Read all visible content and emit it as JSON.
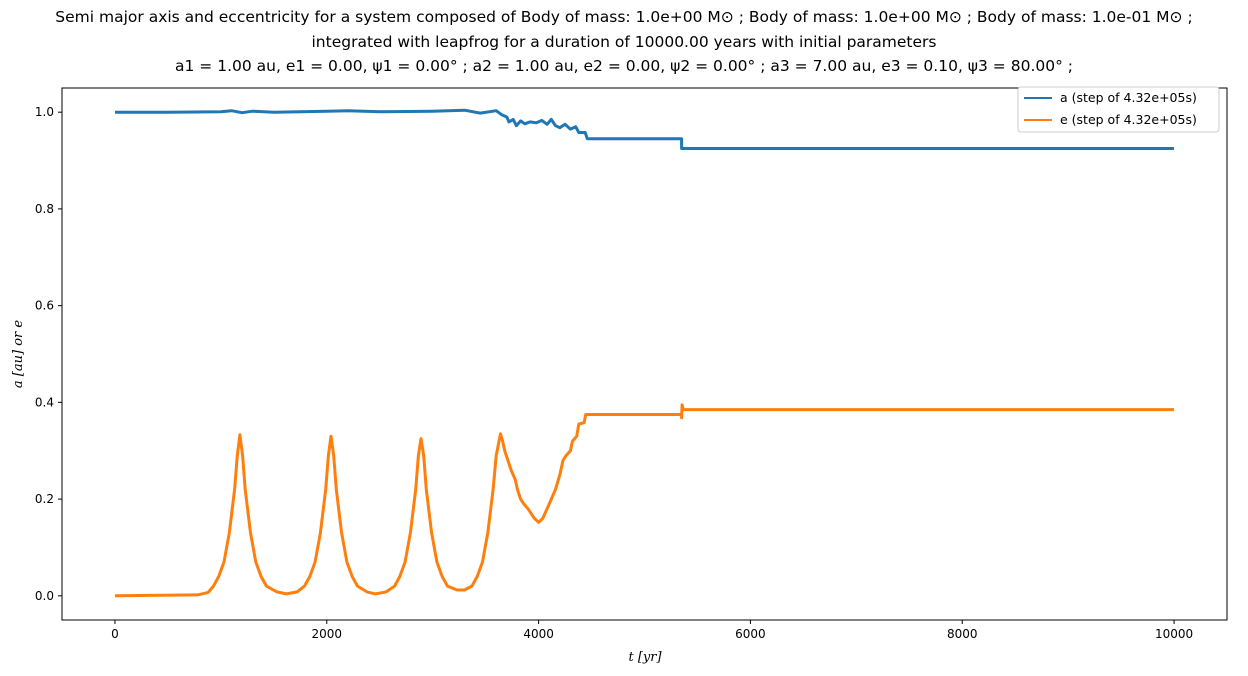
{
  "chart_data": {
    "type": "line",
    "title_lines": [
      "Semi major axis and eccentricity for a system composed of Body of mass: 1.0e+00 M⊙ ; Body of mass: 1.0e+00 M⊙ ; Body of mass: 1.0e-01 M⊙ ;",
      "integrated with leapfrog for a duration of 10000.00 years with initial parameters",
      "a1 = 1.00 au, e1 = 0.00, ψ1 = 0.00° ; a2 = 1.00 au, e2 = 0.00, ψ2 = 0.00° ; a3 = 7.00 au, e3 = 0.10, ψ3 = 80.00° ;"
    ],
    "xlabel": "t [yr]",
    "ylabel": "a [au] or e",
    "xlim": [
      -500,
      10500
    ],
    "ylim": [
      -0.05,
      1.05
    ],
    "xticks": [
      0,
      2000,
      4000,
      6000,
      8000,
      10000
    ],
    "xtick_labels": [
      "0",
      "2000",
      "4000",
      "6000",
      "8000",
      "10000"
    ],
    "yticks": [
      0.0,
      0.2,
      0.4,
      0.6,
      0.8,
      1.0
    ],
    "ytick_labels": [
      "0.0",
      "0.2",
      "0.4",
      "0.6",
      "0.8",
      "1.0"
    ],
    "grid": false,
    "legend_position": "top-right",
    "series": [
      {
        "name": "a (step of 4.32e+05s)",
        "color": "#1f77b4",
        "points": [
          [
            0,
            1.0
          ],
          [
            500,
            1.0
          ],
          [
            1000,
            1.001
          ],
          [
            1100,
            1.003
          ],
          [
            1200,
            0.999
          ],
          [
            1300,
            1.002
          ],
          [
            1500,
            1.0
          ],
          [
            2000,
            1.002
          ],
          [
            2200,
            1.003
          ],
          [
            2500,
            1.001
          ],
          [
            3000,
            1.002
          ],
          [
            3300,
            1.004
          ],
          [
            3450,
            0.998
          ],
          [
            3600,
            1.003
          ],
          [
            3650,
            0.995
          ],
          [
            3700,
            0.99
          ],
          [
            3720,
            0.98
          ],
          [
            3760,
            0.985
          ],
          [
            3790,
            0.972
          ],
          [
            3830,
            0.982
          ],
          [
            3870,
            0.976
          ],
          [
            3920,
            0.98
          ],
          [
            3980,
            0.978
          ],
          [
            4030,
            0.983
          ],
          [
            4080,
            0.975
          ],
          [
            4120,
            0.985
          ],
          [
            4160,
            0.972
          ],
          [
            4200,
            0.968
          ],
          [
            4250,
            0.975
          ],
          [
            4300,
            0.965
          ],
          [
            4350,
            0.97
          ],
          [
            4380,
            0.958
          ],
          [
            4440,
            0.958
          ],
          [
            4460,
            0.945
          ],
          [
            5350,
            0.945
          ],
          [
            5350,
            0.925
          ],
          [
            10000,
            0.925
          ]
        ]
      },
      {
        "name": "e (step of 4.32e+05s)",
        "color": "#ff7f0e",
        "points": [
          [
            0,
            0.0
          ],
          [
            780,
            0.002
          ],
          [
            880,
            0.007
          ],
          [
            930,
            0.02
          ],
          [
            980,
            0.04
          ],
          [
            1030,
            0.07
          ],
          [
            1080,
            0.13
          ],
          [
            1130,
            0.22
          ],
          [
            1155,
            0.29
          ],
          [
            1180,
            0.333
          ],
          [
            1205,
            0.29
          ],
          [
            1230,
            0.22
          ],
          [
            1280,
            0.13
          ],
          [
            1330,
            0.07
          ],
          [
            1380,
            0.04
          ],
          [
            1430,
            0.02
          ],
          [
            1530,
            0.008
          ],
          [
            1620,
            0.004
          ],
          [
            1720,
            0.008
          ],
          [
            1790,
            0.02
          ],
          [
            1840,
            0.04
          ],
          [
            1890,
            0.07
          ],
          [
            1940,
            0.13
          ],
          [
            1990,
            0.22
          ],
          [
            2015,
            0.29
          ],
          [
            2040,
            0.33
          ],
          [
            2065,
            0.29
          ],
          [
            2090,
            0.22
          ],
          [
            2140,
            0.13
          ],
          [
            2190,
            0.07
          ],
          [
            2240,
            0.04
          ],
          [
            2290,
            0.02
          ],
          [
            2380,
            0.008
          ],
          [
            2460,
            0.004
          ],
          [
            2560,
            0.008
          ],
          [
            2640,
            0.02
          ],
          [
            2690,
            0.04
          ],
          [
            2740,
            0.07
          ],
          [
            2790,
            0.13
          ],
          [
            2840,
            0.22
          ],
          [
            2865,
            0.29
          ],
          [
            2890,
            0.325
          ],
          [
            2915,
            0.29
          ],
          [
            2940,
            0.22
          ],
          [
            2990,
            0.13
          ],
          [
            3040,
            0.07
          ],
          [
            3090,
            0.04
          ],
          [
            3140,
            0.02
          ],
          [
            3230,
            0.012
          ],
          [
            3300,
            0.012
          ],
          [
            3370,
            0.02
          ],
          [
            3420,
            0.04
          ],
          [
            3470,
            0.07
          ],
          [
            3520,
            0.13
          ],
          [
            3570,
            0.22
          ],
          [
            3600,
            0.29
          ],
          [
            3640,
            0.335
          ],
          [
            3660,
            0.32
          ],
          [
            3680,
            0.3
          ],
          [
            3710,
            0.28
          ],
          [
            3740,
            0.26
          ],
          [
            3780,
            0.24
          ],
          [
            3800,
            0.22
          ],
          [
            3830,
            0.2
          ],
          [
            3860,
            0.19
          ],
          [
            3900,
            0.18
          ],
          [
            3930,
            0.17
          ],
          [
            3960,
            0.16
          ],
          [
            4000,
            0.152
          ],
          [
            4040,
            0.16
          ],
          [
            4080,
            0.18
          ],
          [
            4120,
            0.2
          ],
          [
            4160,
            0.22
          ],
          [
            4200,
            0.25
          ],
          [
            4230,
            0.28
          ],
          [
            4260,
            0.29
          ],
          [
            4300,
            0.3
          ],
          [
            4320,
            0.32
          ],
          [
            4360,
            0.33
          ],
          [
            4380,
            0.355
          ],
          [
            4430,
            0.358
          ],
          [
            4445,
            0.375
          ],
          [
            5350,
            0.375
          ],
          [
            5350,
            0.368
          ],
          [
            5355,
            0.395
          ],
          [
            5365,
            0.385
          ],
          [
            10000,
            0.385
          ]
        ]
      }
    ]
  }
}
